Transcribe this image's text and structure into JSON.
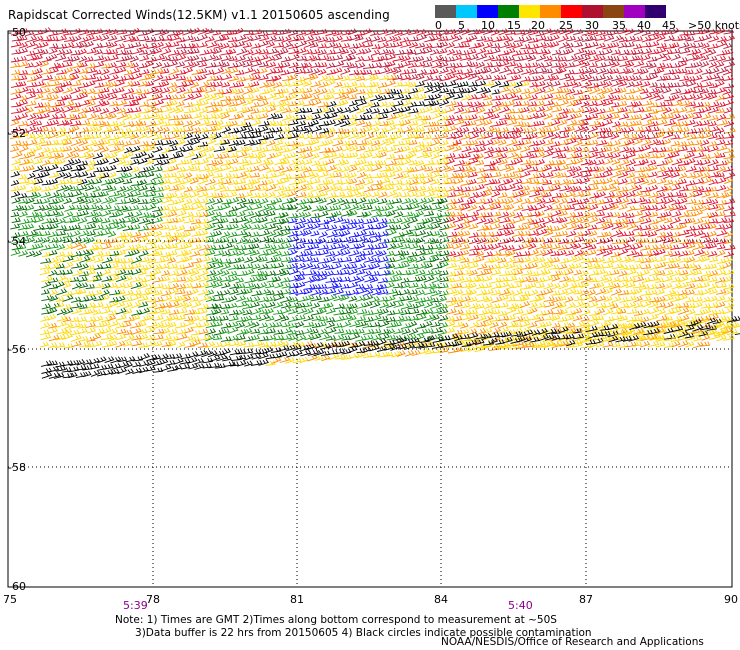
{
  "title": "Rapidscat Corrected Winds(12.5KM) v1.1 20150605 ascending",
  "legend": {
    "colors": [
      "#5a5a5a",
      "#00c8ff",
      "#0000ff",
      "#008000",
      "#ffe600",
      "#ff8c00",
      "#ff0000",
      "#b01030",
      "#8b4513",
      "#a000c0",
      "#300070"
    ],
    "labels": [
      "0",
      "5",
      "10",
      "15",
      "20",
      "25",
      "30",
      "35",
      "40",
      "45",
      ">50 knots"
    ]
  },
  "axes": {
    "lat_labels": [
      "-50",
      "-52",
      "-54",
      "-56",
      "-58",
      "-60"
    ],
    "lon_labels": [
      "75",
      "78",
      "81",
      "84",
      "87",
      "90"
    ]
  },
  "time_labels": [
    "5:39",
    "5:40"
  ],
  "notes": [
    "Note: 1) Times are GMT 2)Times along bottom correspond to measurement at ~50S",
    "      3)Data buffer is 22 hrs from 20150605 4) Black circles indicate possible contamination"
  ],
  "credit": "NOAA/NESDIS/Office of Research and Applications"
}
